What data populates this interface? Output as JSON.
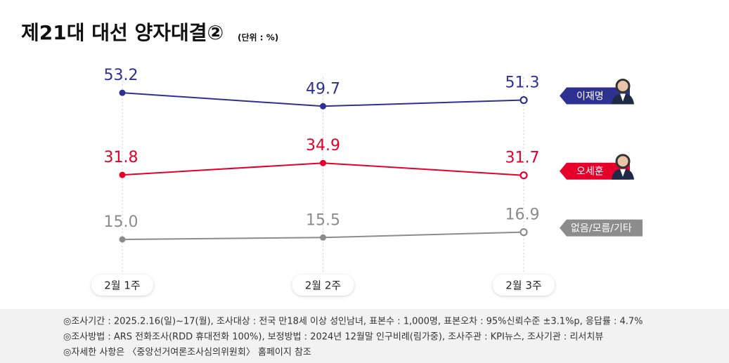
{
  "chart_data": {
    "type": "line",
    "title": "제21대 대선 양자대결②",
    "subtitle": "(단위 : %)",
    "categories": [
      "2월 1주",
      "2월 2주",
      "2월 3주"
    ],
    "series": [
      {
        "name": "이재명",
        "color": "#2e3192",
        "values": [
          53.2,
          49.7,
          51.3
        ]
      },
      {
        "name": "오세훈",
        "color": "#e4002b",
        "values": [
          31.8,
          34.9,
          31.7
        ]
      },
      {
        "name": "없음/모름/기타",
        "color": "#8c8c8c",
        "values": [
          15.0,
          15.5,
          16.9
        ],
        "value_labels": [
          "15.0",
          "15.5",
          "16.9"
        ]
      }
    ],
    "ylim": [
      0,
      60
    ],
    "notes": [
      "◎조사기간 : 2025.2.16(일)~17(월), 조사대상 : 전국 만18세 이상 성인남녀, 표본수 : 1,000명, 표본오차 : 95%신뢰수준 ±3.1%p, 응답률 : 4.7%",
      "◎조사방법 : ARS 전화조사(RDD 휴대전화 100%), 보정방법 : 2024년 12월말 인구비례(림가중), 조사주관 : KPI뉴스, 조사기관 : 리서치뷰",
      "◎자세한 사항은 〈중앙선거여론조사심의위원회〉 홈페이지 참조"
    ]
  }
}
